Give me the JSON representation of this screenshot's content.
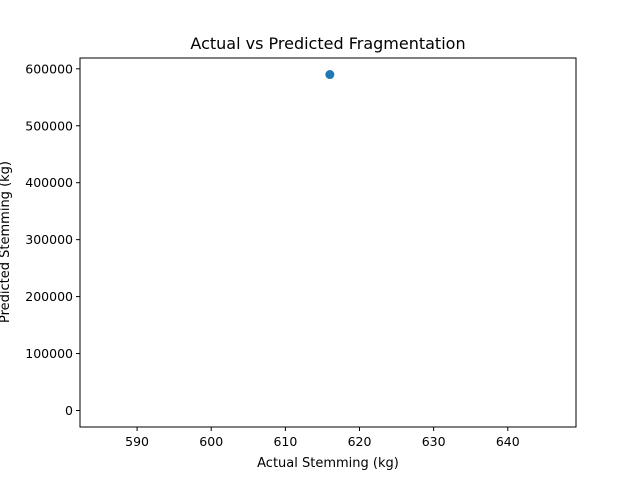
{
  "chart_data": {
    "type": "scatter",
    "title": "Actual vs Predicted Fragmentation",
    "xlabel": "Actual Stemming (kg)",
    "ylabel": "Predicted Stemming (kg)",
    "xlim": [
      582.3,
      649.2
    ],
    "ylim": [
      -29000,
      619000
    ],
    "xticks": [
      590,
      600,
      610,
      620,
      630,
      640
    ],
    "yticks": [
      0,
      100000,
      200000,
      300000,
      400000,
      500000,
      600000
    ],
    "grid": false,
    "points": [
      {
        "x": 616,
        "y": 590000
      }
    ],
    "colors": {
      "marker": "#1f77b4",
      "axes": "#000000",
      "background": "#ffffff"
    }
  }
}
